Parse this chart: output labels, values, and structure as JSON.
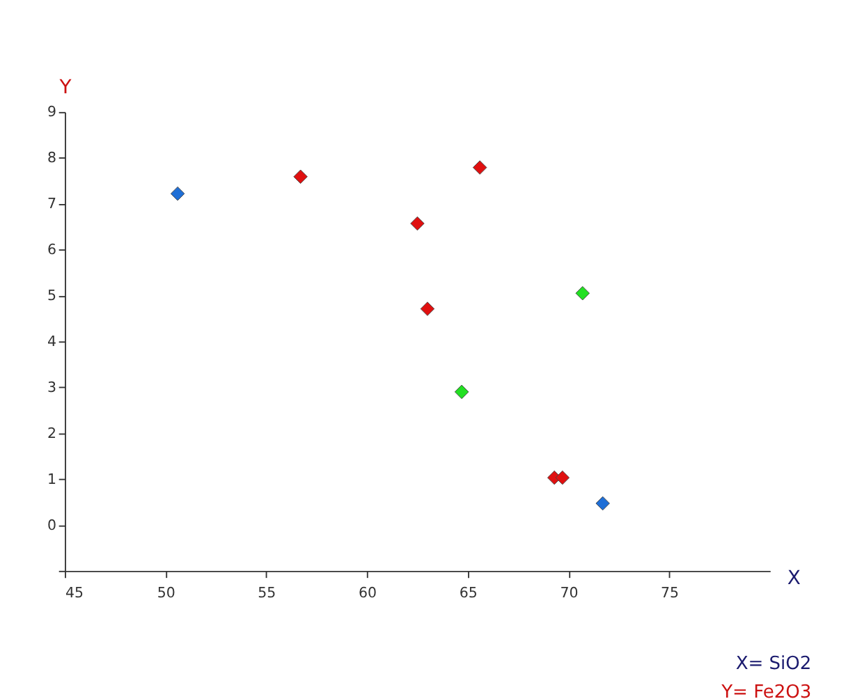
{
  "chart_data": {
    "type": "scatter",
    "xlabel": "X",
    "ylabel": "Y",
    "xlim": [
      45,
      80
    ],
    "xticks": [
      45,
      50,
      55,
      60,
      65,
      70,
      75
    ],
    "ylim": [
      -1,
      9
    ],
    "yticks": [
      {
        "value": -1,
        "label": null
      },
      0,
      1,
      2,
      3,
      4,
      5,
      6,
      7,
      8,
      9
    ],
    "grid": false,
    "legend": false,
    "marker": "diamond",
    "series": [
      {
        "color": "#1f6fd6",
        "x": [
          50.6,
          71.7
        ],
        "values": [
          7.22,
          0.47
        ]
      },
      {
        "color": "#e01010",
        "x": [
          56.7,
          65.6,
          62.5,
          63.0,
          69.3,
          69.7
        ],
        "values": [
          7.59,
          7.79,
          6.57,
          4.71,
          1.03,
          1.03
        ]
      },
      {
        "color": "#22e022",
        "x": [
          70.7,
          64.7
        ],
        "values": [
          5.05,
          2.9
        ]
      }
    ],
    "annotations": [
      "X= SiO2",
      "Y= Fe2O3"
    ]
  }
}
